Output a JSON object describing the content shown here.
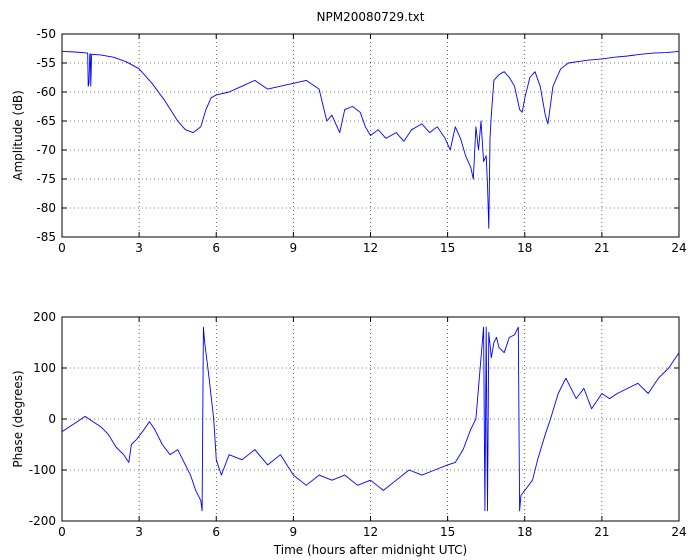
{
  "chart_data": [
    {
      "type": "line",
      "title": "NPM20080729.txt",
      "xlabel": "",
      "ylabel": "Amplitude (dB)",
      "xlim": [
        0,
        24
      ],
      "ylim": [
        -85,
        -50
      ],
      "xticks": [
        0,
        3,
        6,
        9,
        12,
        15,
        18,
        21,
        24
      ],
      "yticks": [
        -85,
        -80,
        -75,
        -70,
        -65,
        -60,
        -55,
        -50
      ],
      "grid": true,
      "series": [
        {
          "color": "#0000ff",
          "x": [
            0,
            0.5,
            1.0,
            1.02,
            1.05,
            1.08,
            1.1,
            1.12,
            1.15,
            1.5,
            2.0,
            2.5,
            3.0,
            3.5,
            4.0,
            4.5,
            4.8,
            5.1,
            5.4,
            5.6,
            5.8,
            6.0,
            6.5,
            7.0,
            7.5,
            8.0,
            8.5,
            9.0,
            9.5,
            10.0,
            10.3,
            10.5,
            10.8,
            11.0,
            11.3,
            11.6,
            11.8,
            12.0,
            12.3,
            12.6,
            13.0,
            13.3,
            13.6,
            14.0,
            14.3,
            14.6,
            14.9,
            15.1,
            15.3,
            15.5,
            15.7,
            15.9,
            16.0,
            16.1,
            16.2,
            16.3,
            16.4,
            16.5,
            16.55,
            16.6,
            16.65,
            16.7,
            16.8,
            17.0,
            17.2,
            17.4,
            17.6,
            17.8,
            17.9,
            18.0,
            18.2,
            18.4,
            18.6,
            18.8,
            18.9,
            19.1,
            19.4,
            19.7,
            20.0,
            20.5,
            21.0,
            21.5,
            22.0,
            22.5,
            23.0,
            23.5,
            24.0
          ],
          "values": [
            -53.0,
            -53.1,
            -53.3,
            -59.0,
            -58.5,
            -53.5,
            -53.4,
            -59.0,
            -53.5,
            -53.6,
            -54.0,
            -54.8,
            -56.0,
            -58.5,
            -61.5,
            -65.0,
            -66.5,
            -67.0,
            -66.0,
            -63.0,
            -61.0,
            -60.5,
            -60.0,
            -59.0,
            -58.0,
            -59.5,
            -59.0,
            -58.5,
            -58.0,
            -59.5,
            -65.0,
            -64.0,
            -67.0,
            -63.0,
            -62.5,
            -63.5,
            -66.0,
            -67.5,
            -66.5,
            -68.0,
            -67.0,
            -68.5,
            -66.5,
            -65.5,
            -67.0,
            -66.0,
            -68.0,
            -70.0,
            -66.0,
            -68.0,
            -71.0,
            -73.0,
            -75.0,
            -66.0,
            -70.0,
            -65.0,
            -72.0,
            -71.0,
            -76.0,
            -83.5,
            -68.0,
            -64.0,
            -58.0,
            -57.0,
            -56.5,
            -57.5,
            -59.0,
            -63.0,
            -63.5,
            -61.0,
            -57.5,
            -56.5,
            -59.0,
            -64.0,
            -65.5,
            -59.0,
            -56.0,
            -55.0,
            -54.8,
            -54.5,
            -54.3,
            -54.0,
            -53.8,
            -53.5,
            -53.3,
            -53.2,
            -53.0
          ]
        }
      ]
    },
    {
      "type": "line",
      "title": "",
      "xlabel": "Time (hours after midnight UTC)",
      "ylabel": "Phase (degrees)",
      "xlim": [
        0,
        24
      ],
      "ylim": [
        -200,
        200
      ],
      "xticks": [
        0,
        3,
        6,
        9,
        12,
        15,
        18,
        21,
        24
      ],
      "yticks": [
        -200,
        -100,
        0,
        100,
        200
      ],
      "grid": true,
      "series": [
        {
          "color": "#0000ff",
          "x": [
            0,
            0.3,
            0.6,
            0.9,
            1.2,
            1.5,
            1.8,
            2.1,
            2.4,
            2.6,
            2.7,
            2.9,
            3.2,
            3.4,
            3.6,
            3.9,
            4.2,
            4.5,
            4.8,
            5.0,
            5.2,
            5.4,
            5.45,
            5.5,
            5.55,
            5.7,
            5.9,
            6.0,
            6.2,
            6.5,
            7.0,
            7.5,
            8.0,
            8.5,
            9.0,
            9.5,
            10.0,
            10.5,
            11.0,
            11.5,
            12.0,
            12.5,
            13.0,
            13.5,
            14.0,
            14.5,
            15.0,
            15.3,
            15.6,
            15.9,
            16.1,
            16.3,
            16.4,
            16.45,
            16.5,
            16.55,
            16.6,
            16.7,
            16.8,
            16.9,
            17.0,
            17.2,
            17.4,
            17.6,
            17.75,
            17.8,
            17.85,
            18.0,
            18.3,
            18.5,
            18.8,
            19.0,
            19.3,
            19.6,
            20.0,
            20.3,
            20.6,
            21.0,
            21.3,
            21.6,
            22.0,
            22.4,
            22.8,
            23.2,
            23.6,
            24.0
          ],
          "values": [
            -25,
            -15,
            -5,
            5,
            -5,
            -15,
            -30,
            -55,
            -70,
            -85,
            -50,
            -40,
            -20,
            -5,
            -20,
            -50,
            -70,
            -60,
            -90,
            -110,
            -140,
            -160,
            -180,
            180,
            150,
            90,
            0,
            -80,
            -110,
            -70,
            -80,
            -60,
            -90,
            -70,
            -110,
            -130,
            -110,
            -120,
            -110,
            -130,
            -120,
            -140,
            -120,
            -100,
            -110,
            -100,
            -90,
            -85,
            -60,
            -20,
            0,
            120,
            180,
            -180,
            180,
            -180,
            170,
            120,
            150,
            160,
            140,
            130,
            160,
            165,
            180,
            -180,
            -150,
            -140,
            -120,
            -80,
            -30,
            0,
            50,
            80,
            40,
            60,
            20,
            50,
            40,
            50,
            60,
            70,
            50,
            80,
            100,
            130
          ]
        }
      ]
    }
  ]
}
